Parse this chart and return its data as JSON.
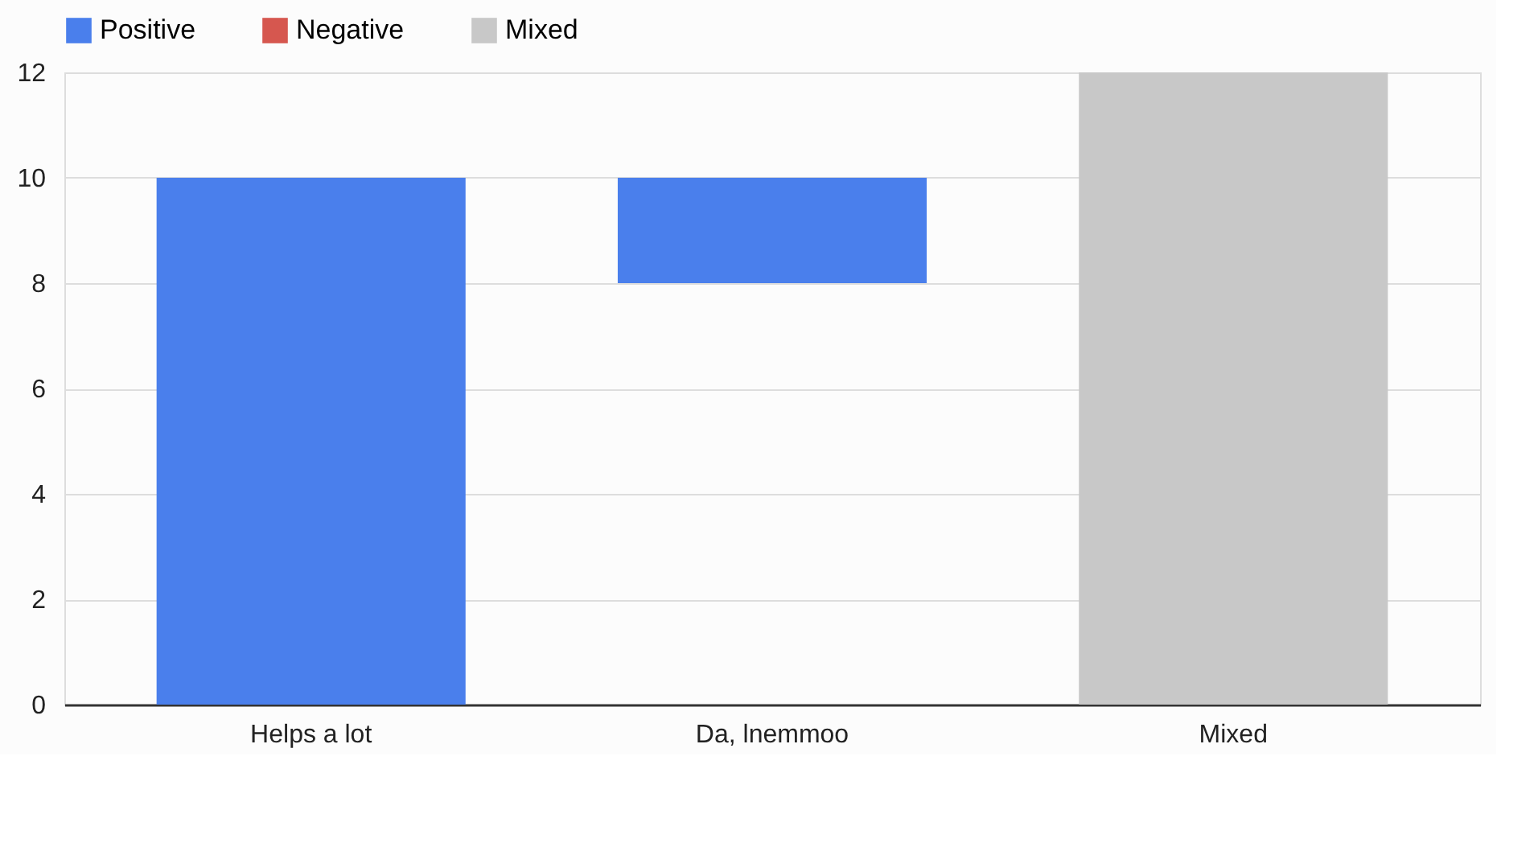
{
  "chart_data": {
    "type": "bar",
    "categories": [
      "Helps a lot",
      "Da, lnemmoo",
      "Mixed"
    ],
    "series": [
      {
        "name": "Positive",
        "color": "#4a7fec",
        "values": [
          10,
          2,
          null
        ],
        "base": [
          0,
          8,
          null
        ]
      },
      {
        "name": "Negative",
        "color": "#d6574f",
        "values": [
          null,
          null,
          null
        ]
      },
      {
        "name": "Mixed",
        "color": "#c8c8c8",
        "values": [
          null,
          null,
          12
        ],
        "base": [
          null,
          null,
          0
        ]
      }
    ],
    "ylim": [
      0,
      12
    ],
    "yticks": [
      0,
      2,
      4,
      6,
      8,
      10,
      12
    ],
    "grid": "y",
    "legend": "top"
  }
}
